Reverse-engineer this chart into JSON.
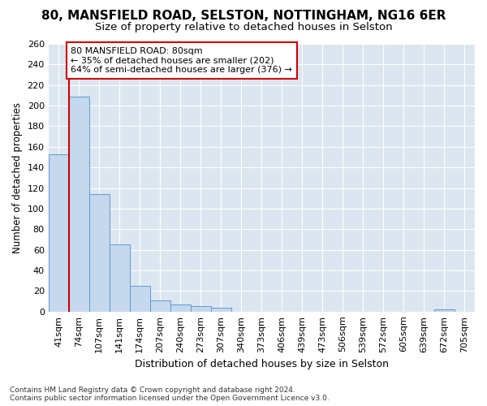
{
  "title_line1": "80, MANSFIELD ROAD, SELSTON, NOTTINGHAM, NG16 6ER",
  "title_line2": "Size of property relative to detached houses in Selston",
  "xlabel": "Distribution of detached houses by size in Selston",
  "ylabel": "Number of detached properties",
  "footer": "Contains HM Land Registry data © Crown copyright and database right 2024.\nContains public sector information licensed under the Open Government Licence v3.0.",
  "bin_labels": [
    "41sqm",
    "74sqm",
    "107sqm",
    "141sqm",
    "174sqm",
    "207sqm",
    "240sqm",
    "273sqm",
    "307sqm",
    "340sqm",
    "373sqm",
    "406sqm",
    "439sqm",
    "473sqm",
    "506sqm",
    "539sqm",
    "572sqm",
    "605sqm",
    "639sqm",
    "672sqm",
    "705sqm"
  ],
  "bar_values": [
    153,
    209,
    114,
    65,
    25,
    11,
    7,
    5,
    4,
    0,
    0,
    0,
    0,
    0,
    0,
    0,
    0,
    0,
    0,
    2,
    0
  ],
  "bar_color": "#c5d8ed",
  "bar_edge_color": "#5b9bd5",
  "vline_x": 1.0,
  "vline_color": "#cc0000",
  "annotation_text": "80 MANSFIELD ROAD: 80sqm\n← 35% of detached houses are smaller (202)\n64% of semi-detached houses are larger (376) →",
  "annotation_box_facecolor": "#ffffff",
  "annotation_box_edgecolor": "#cc0000",
  "ylim": [
    0,
    260
  ],
  "plot_bg_color": "#dce6f1",
  "fig_bg_color": "#ffffff",
  "grid_color": "#ffffff",
  "title_fontsize": 11,
  "subtitle_fontsize": 9.5,
  "xlabel_fontsize": 9,
  "ylabel_fontsize": 8.5,
  "tick_fontsize": 8,
  "annotation_fontsize": 8,
  "footer_fontsize": 6.5
}
